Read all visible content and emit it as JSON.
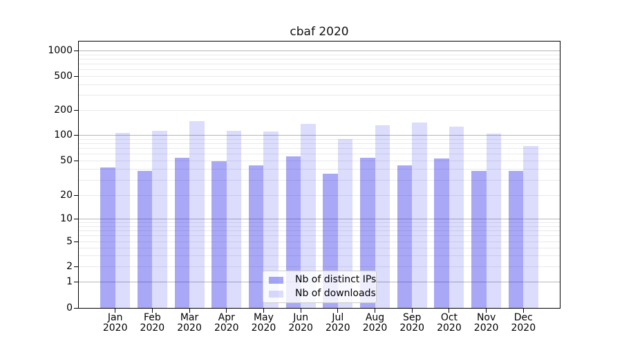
{
  "chart_data": {
    "type": "bar",
    "title": "cbaf 2020",
    "months": [
      "Jan",
      "Feb",
      "Mar",
      "Apr",
      "May",
      "Jun",
      "Jul",
      "Aug",
      "Sep",
      "Oct",
      "Nov",
      "Dec"
    ],
    "year": "2020",
    "categories": [
      "Jan 2020",
      "Feb 2020",
      "Mar 2020",
      "Apr 2020",
      "May 2020",
      "Jun 2020",
      "Jul 2020",
      "Aug 2020",
      "Sep 2020",
      "Oct 2020",
      "Nov 2020",
      "Dec 2020"
    ],
    "series": [
      {
        "name": "Nb of distinct IPs",
        "color": "#0d0de8",
        "alpha": 0.36,
        "values": [
          42,
          38,
          54,
          49,
          44,
          56,
          35,
          54,
          44,
          53,
          38,
          38
        ]
      },
      {
        "name": "Nb of downloads",
        "color": "#0d0de8",
        "alpha": 0.145,
        "values": [
          106,
          112,
          148,
          112,
          110,
          136,
          90,
          131,
          142,
          125,
          104,
          74
        ]
      }
    ],
    "xlabel": "",
    "ylabel": "",
    "yscale": "symlog",
    "y_ticks": [
      0,
      1,
      2,
      5,
      10,
      20,
      50,
      100,
      200,
      500,
      1000
    ],
    "ylim": [
      0,
      1300
    ],
    "grid": {
      "major": true,
      "minor": true
    },
    "legend_position": "lower center"
  },
  "colors": {
    "bar_strong_composited": "#a7a7f6",
    "bar_light_composited": "#dcdcf9",
    "grid_major": "#b6b6b6",
    "grid_minor": "#e9e9e9",
    "spine": "#000000",
    "legend_border": "#cccccc"
  }
}
